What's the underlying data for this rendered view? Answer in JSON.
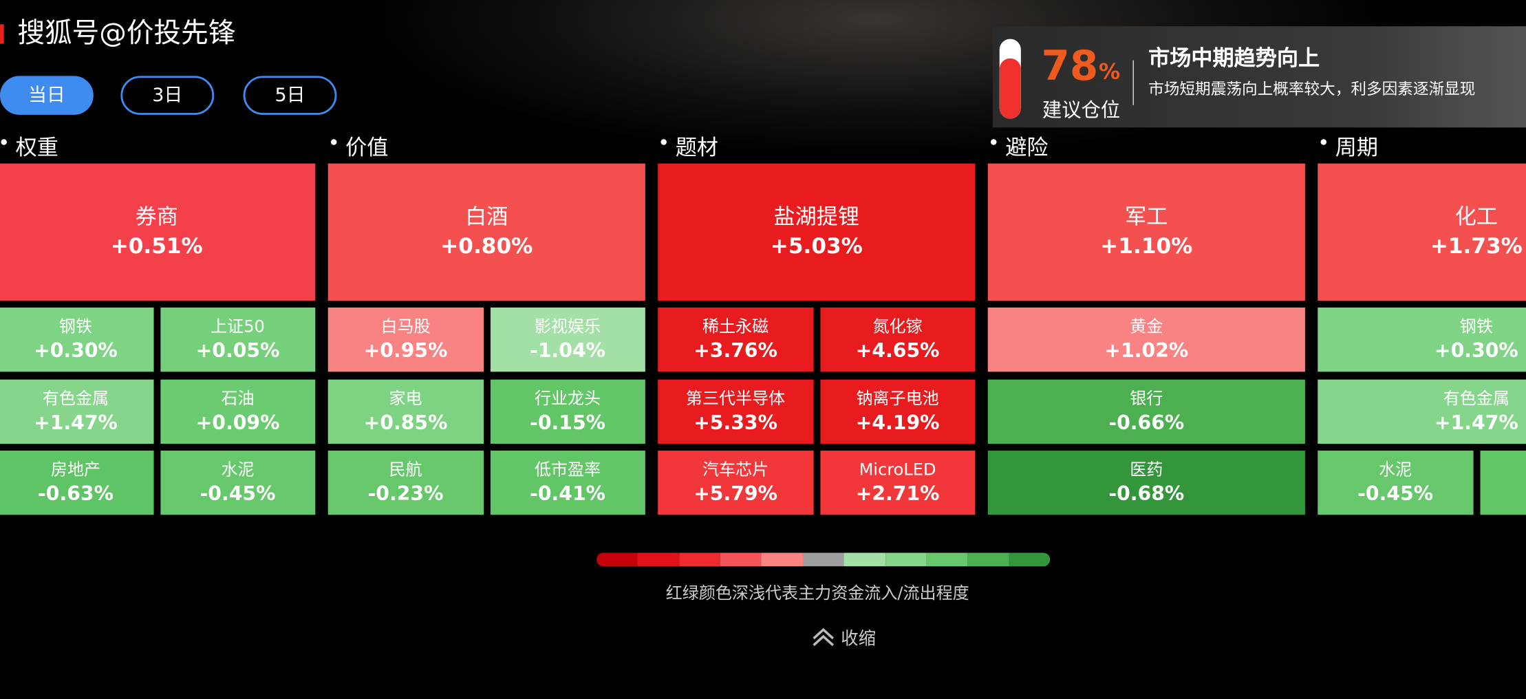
{
  "header": {
    "watermark": "搜狐号@价投先锋"
  },
  "tabs": [
    "当日",
    "3日",
    "5日"
  ],
  "position": {
    "percent": "78",
    "unit": "%",
    "label": "建议仓位",
    "headline": "市场中期趋势向上",
    "description": "市场短期震荡向上概率较大，利多因素逐渐显现"
  },
  "groups": [
    {
      "name": "权重",
      "main": {
        "name": "券商",
        "change": "+0.51%",
        "color": "#f4404a"
      },
      "rows": [
        [
          {
            "name": "钢铁",
            "change": "+0.30%",
            "color": "#7fd384"
          },
          {
            "name": "上证50",
            "change": "+0.05%",
            "color": "#76cf7a"
          }
        ],
        [
          {
            "name": "有色金属",
            "change": "+1.47%",
            "color": "#85d68a"
          },
          {
            "name": "石油",
            "change": "+0.09%",
            "color": "#6acb70"
          }
        ],
        [
          {
            "name": "房地产",
            "change": "-0.63%",
            "color": "#5fc465"
          },
          {
            "name": "水泥",
            "change": "-0.45%",
            "color": "#66c86b"
          }
        ]
      ]
    },
    {
      "name": "价值",
      "main": {
        "name": "白酒",
        "change": "+0.80%",
        "color": "#f55050"
      },
      "rows": [
        [
          {
            "name": "白马股",
            "change": "+0.95%",
            "color": "#f98383"
          },
          {
            "name": "影视娱乐",
            "change": "-1.04%",
            "color": "#a3e0a5"
          }
        ],
        [
          {
            "name": "家电",
            "change": "+0.85%",
            "color": "#7ed383"
          },
          {
            "name": "行业龙头",
            "change": "-0.15%",
            "color": "#62c667"
          }
        ],
        [
          {
            "name": "民航",
            "change": "-0.23%",
            "color": "#66c86b"
          },
          {
            "name": "低市盈率",
            "change": "-0.41%",
            "color": "#62c667"
          }
        ]
      ]
    },
    {
      "name": "题材",
      "main": {
        "name": "盐湖提锂",
        "change": "+5.03%",
        "color": "#e81c1f"
      },
      "rows": [
        [
          {
            "name": "稀土永磁",
            "change": "+3.76%",
            "color": "#e81c1f"
          },
          {
            "name": "氮化镓",
            "change": "+4.65%",
            "color": "#e81c1f"
          }
        ],
        [
          {
            "name": "第三代半导体",
            "change": "+5.33%",
            "color": "#e81c1f"
          },
          {
            "name": "钠离子电池",
            "change": "+4.19%",
            "color": "#e81c1f"
          }
        ],
        [
          {
            "name": "汽车芯片",
            "change": "+5.79%",
            "color": "#f2373b"
          },
          {
            "name": "MicroLED",
            "change": "+2.71%",
            "color": "#f2373b"
          }
        ]
      ]
    },
    {
      "name": "避险",
      "main": {
        "name": "军工",
        "change": "+1.10%",
        "color": "#f55050"
      },
      "rows": [
        [
          {
            "name": "黄金",
            "change": "+1.02%",
            "color": "#f98383"
          }
        ],
        [
          {
            "name": "银行",
            "change": "-0.66%",
            "color": "#4caf50"
          }
        ],
        [
          {
            "name": "医药",
            "change": "-0.68%",
            "color": "#33963a"
          }
        ]
      ]
    },
    {
      "name": "周期",
      "main": {
        "name": "化工",
        "change": "+1.73%",
        "color": "#f55050"
      },
      "rows": [
        [
          {
            "name": "钢铁",
            "change": "+0.30%",
            "color": "#7fd384"
          }
        ],
        [
          {
            "name": "有色金属",
            "change": "+1.47%",
            "color": "#85d68a"
          }
        ],
        [
          {
            "name": "水泥",
            "change": "-0.45%",
            "color": "#66c86b"
          },
          {
            "color": "#62c667"
          }
        ]
      ]
    }
  ],
  "legend": {
    "colors": [
      "#c4000a",
      "#e0121a",
      "#ee2b2f",
      "#f5555a",
      "#f98383",
      "#9e9e9e",
      "#a3e0a5",
      "#85d68a",
      "#66c86b",
      "#4caf50",
      "#33963a"
    ],
    "caption": "红绿颜色深浅代表主力资金流入/流出程度"
  },
  "collapse": "收缩"
}
